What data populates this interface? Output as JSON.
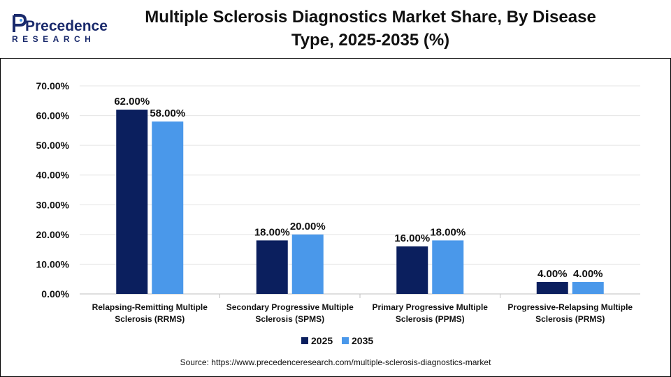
{
  "header": {
    "brand_name": "Precedence",
    "brand_sub": "RESEARCH",
    "title_line1": "Multiple Sclerosis Diagnostics Market Share, By Disease",
    "title_line2": "Type, 2025-2035 (%)"
  },
  "colors": {
    "series_2025": "#0b1f5e",
    "series_2035": "#4a98ea",
    "grid": "#e4e4e4",
    "brand_dark": "#1a2a6c",
    "brand_light": "#4a98ea"
  },
  "chart_data": {
    "type": "bar",
    "categories": [
      [
        "Relapsing-Remitting Multiple",
        "Sclerosis (RRMS)"
      ],
      [
        "Secondary Progressive Multiple",
        "Sclerosis (SPMS)"
      ],
      [
        "Primary Progressive Multiple",
        "Sclerosis (PPMS)"
      ],
      [
        "Progressive-Relapsing Multiple",
        "Sclerosis (PRMS)"
      ]
    ],
    "series": [
      {
        "name": "2025",
        "values": [
          62,
          18,
          16,
          4
        ]
      },
      {
        "name": "2035",
        "values": [
          58,
          20,
          18,
          4
        ]
      }
    ],
    "ylim": [
      0,
      70
    ],
    "yticks": [
      0,
      10,
      20,
      30,
      40,
      50,
      60,
      70
    ],
    "ytick_labels": [
      "0.00%",
      "10.00%",
      "20.00%",
      "30.00%",
      "40.00%",
      "50.00%",
      "60.00%",
      "70.00%"
    ],
    "data_labels": [
      [
        "62.00%",
        "18.00%",
        "16.00%",
        "4.00%"
      ],
      [
        "58.00%",
        "20.00%",
        "18.00%",
        "4.00%"
      ]
    ],
    "grid": true,
    "legend_position": "bottom"
  },
  "footer": {
    "source": "Source: https://www.precedenceresearch.com/multiple-sclerosis-diagnostics-market"
  }
}
